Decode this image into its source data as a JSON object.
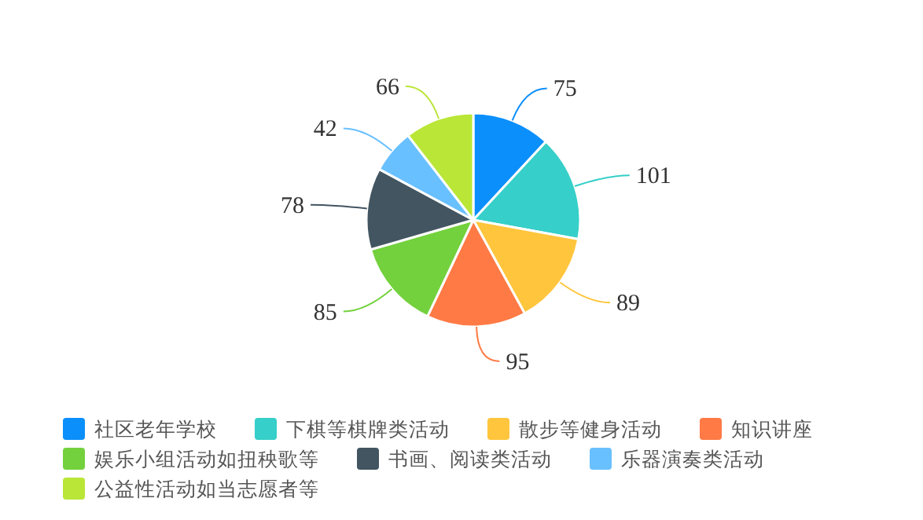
{
  "chart_data": {
    "type": "pie",
    "categories": [
      "社区老年学校",
      "下棋等棋牌类活动",
      "散步等健身活动",
      "知识讲座",
      "娱乐小组活动如扭秧歌等",
      "书画、阅读类活动",
      "乐器演奏类活动",
      "公益性活动如当志愿者等"
    ],
    "values": [
      75,
      101,
      89,
      95,
      85,
      78,
      42,
      66
    ],
    "colors": [
      "#0b8ffb",
      "#36cfc9",
      "#ffc53d",
      "#ff7a45",
      "#73d13d",
      "#425561",
      "#69c0ff",
      "#bae637"
    ],
    "data_labels": true,
    "legend": "bottom"
  }
}
